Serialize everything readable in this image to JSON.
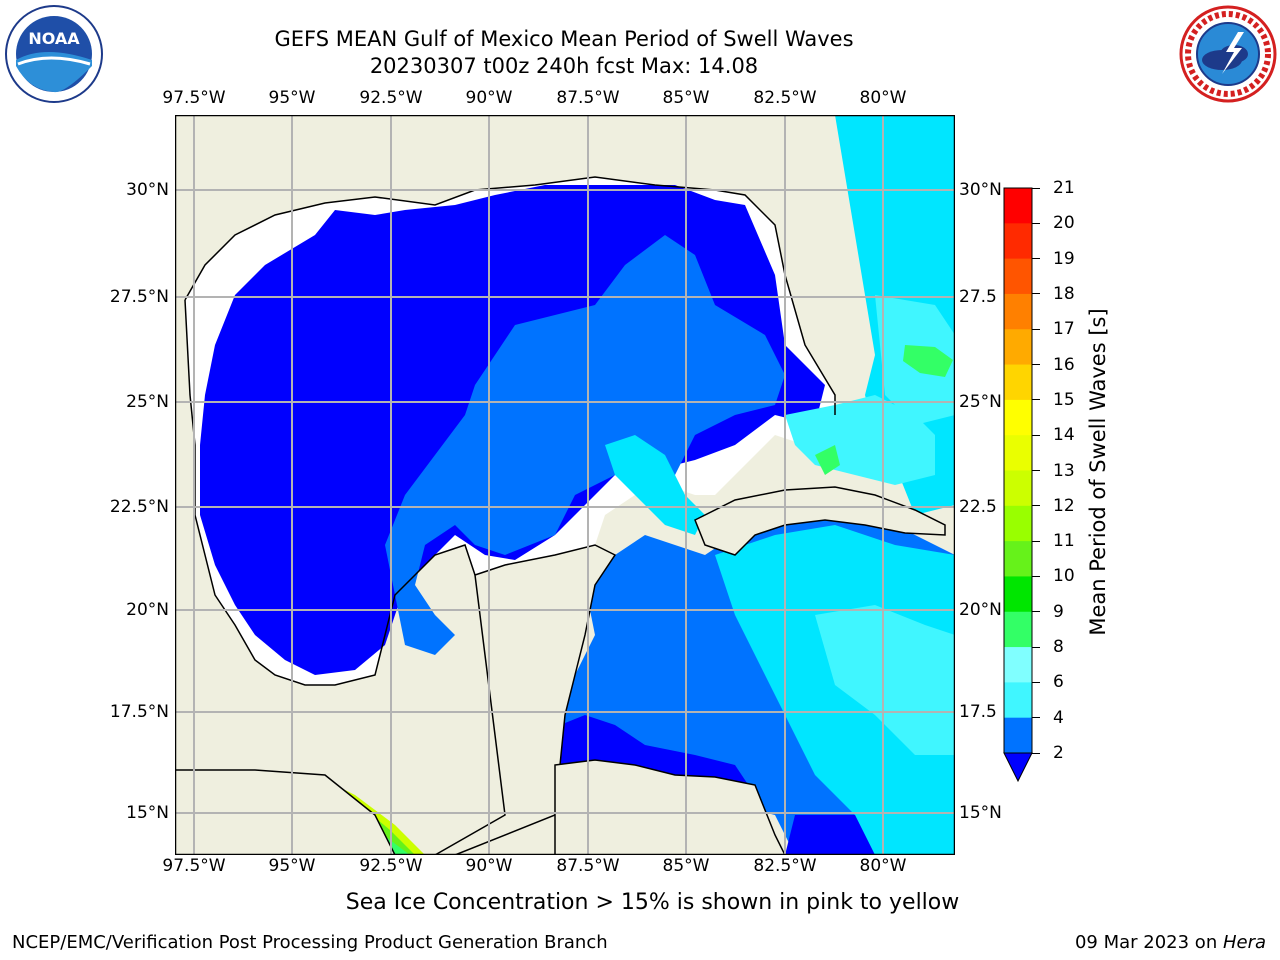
{
  "header": {
    "title_line1": "GEFS MEAN Gulf of Mexico Mean Period of Swell Waves",
    "title_line2": "20230307 t00z 240h fcst   Max: 14.08"
  },
  "logos": {
    "left": {
      "icon": "noaa-logo-icon",
      "text": "NOAA"
    },
    "right": {
      "icon": "nws-logo-icon"
    }
  },
  "map": {
    "lon_labels": [
      "97.5°W",
      "95°W",
      "92.5°W",
      "90°W",
      "87.5°W",
      "85°W",
      "82.5°W",
      "80°W"
    ],
    "lat_labels_left": [
      "30°N",
      "27.5°N",
      "25°N",
      "22.5°N",
      "20°N",
      "17.5°N",
      "15°N"
    ],
    "lat_labels_right": [
      "30°N",
      "27.5",
      "25°N",
      "22.5",
      "20°N",
      "17.5",
      "15°N"
    ],
    "colors": {
      "land": "#efefdf",
      "nodata": "#ffffff",
      "deep_blue": "#0000ff",
      "mid_blue": "#0073ff",
      "cyan": "#00e6ff",
      "light_cyan": "#40f6ff",
      "pale_cyan": "#80ffff",
      "green": "#33ff66",
      "yellow_green": "#ccff00",
      "lime": "#66f21a",
      "grid": "#b3b3b3"
    }
  },
  "colorbar": {
    "label": "Mean Period of Swell Waves [s]",
    "ticks": [
      "21",
      "20",
      "19",
      "18",
      "17",
      "16",
      "15",
      "14",
      "13",
      "12",
      "11",
      "10",
      "9",
      "8",
      "6",
      "4",
      "2"
    ],
    "colors": [
      "#ff0000",
      "#ff2a00",
      "#ff5500",
      "#ff8000",
      "#ffaa00",
      "#ffd500",
      "#ffff00",
      "#eaff00",
      "#ccff00",
      "#99ff00",
      "#66f21a",
      "#00e600",
      "#33ff66",
      "#80ffff",
      "#40f6ff",
      "#00e6ff",
      "#0073ff"
    ],
    "extend_color": "#0000ff"
  },
  "caption": "Sea Ice Concentration > 15% is shown in pink to yellow",
  "footer": {
    "left": "NCEP/EMC/Verification Post Processing Product Generation Branch",
    "right_date": "09 Mar 2023 on ",
    "right_host": "Hera"
  }
}
